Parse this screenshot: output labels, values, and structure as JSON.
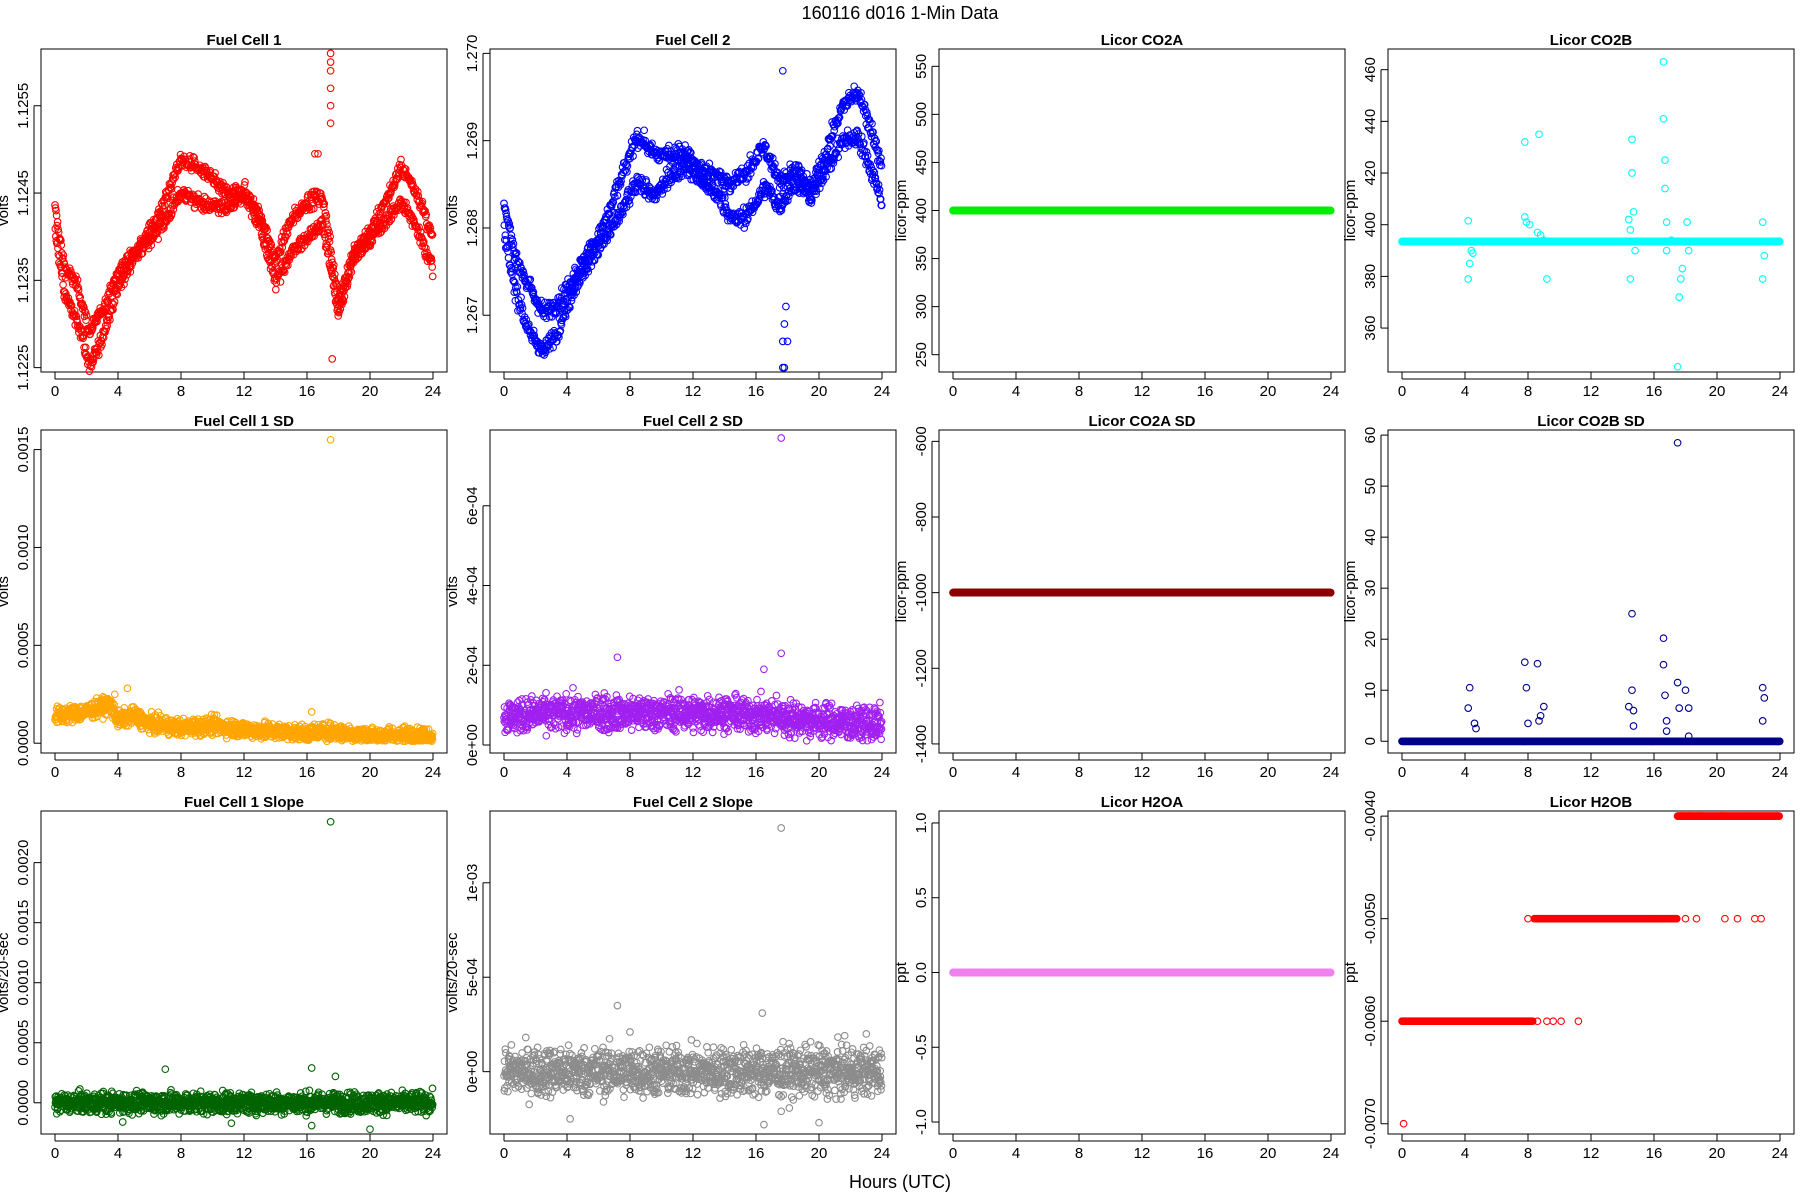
{
  "figure": {
    "title": "160116   d016   1-Min Data",
    "xlabel": "Hours (UTC)"
  },
  "chart_data": [
    {
      "type": "scatter",
      "title": "Fuel Cell 1",
      "ylabel": "volts",
      "color": "#ff0000",
      "xlim": [
        0,
        24
      ],
      "ylim": [
        1.12245,
        1.12615
      ],
      "xticks": [
        0,
        4,
        8,
        12,
        16,
        20,
        24
      ],
      "yticks": [
        1.1225,
        1.1235,
        1.1245,
        1.1255
      ],
      "yticklabels": [
        "1.1225",
        "1.1235",
        "1.1245",
        "1.1255"
      ],
      "knots": [
        [
          0,
          1.1242
        ],
        [
          0.6,
          1.1235
        ],
        [
          1.5,
          1.1232
        ],
        [
          2.2,
          1.1227
        ],
        [
          3,
          1.123
        ],
        [
          4,
          1.1235
        ],
        [
          5,
          1.1238
        ],
        [
          6,
          1.124
        ],
        [
          7,
          1.1243
        ],
        [
          8,
          1.1247
        ],
        [
          9,
          1.1246
        ],
        [
          10,
          1.1245
        ],
        [
          11,
          1.1244
        ],
        [
          12,
          1.1245
        ],
        [
          13,
          1.1242
        ],
        [
          14,
          1.1236
        ],
        [
          15,
          1.124
        ],
        [
          16,
          1.1242
        ],
        [
          17,
          1.1243
        ],
        [
          18,
          1.1232
        ],
        [
          19,
          1.1238
        ],
        [
          20,
          1.124
        ],
        [
          21,
          1.1243
        ],
        [
          22,
          1.1246
        ],
        [
          23,
          1.1243
        ],
        [
          24,
          1.1238
        ]
      ],
      "band": 0.0004,
      "noise": 0.00012,
      "outliers": [
        [
          16.5,
          1.12495
        ],
        [
          16.7,
          1.12495
        ],
        [
          17.5,
          1.1261
        ],
        [
          17.5,
          1.126
        ],
        [
          17.5,
          1.1259
        ],
        [
          17.5,
          1.1257
        ],
        [
          17.5,
          1.1255
        ],
        [
          17.5,
          1.1253
        ],
        [
          17.6,
          1.1226
        ]
      ]
    },
    {
      "type": "scatter",
      "title": "Fuel Cell 2",
      "ylabel": "volts",
      "color": "#0000ff",
      "xlim": [
        0,
        24
      ],
      "ylim": [
        1.26635,
        1.27005
      ],
      "xticks": [
        0,
        4,
        8,
        12,
        16,
        20,
        24
      ],
      "yticks": [
        1.267,
        1.268,
        1.269,
        1.27
      ],
      "yticklabels": [
        "1.267",
        "1.268",
        "1.269",
        "1.270"
      ],
      "knots": [
        [
          0,
          1.2681
        ],
        [
          0.7,
          1.2675
        ],
        [
          1.5,
          1.2671
        ],
        [
          2.5,
          1.2668
        ],
        [
          3.5,
          1.267
        ],
        [
          4.5,
          1.2674
        ],
        [
          5.5,
          1.2677
        ],
        [
          6.5,
          1.268
        ],
        [
          7.5,
          1.2684
        ],
        [
          8.5,
          1.2688
        ],
        [
          9.5,
          1.2686
        ],
        [
          10.5,
          1.2687
        ],
        [
          11.5,
          1.2688
        ],
        [
          12.5,
          1.2686
        ],
        [
          13.5,
          1.2685
        ],
        [
          14.5,
          1.2683
        ],
        [
          15.5,
          1.2684
        ],
        [
          16.5,
          1.2687
        ],
        [
          17.5,
          1.2684
        ],
        [
          18.5,
          1.2686
        ],
        [
          19.5,
          1.2684
        ],
        [
          20.5,
          1.2688
        ],
        [
          21.5,
          1.2692
        ],
        [
          22.5,
          1.2693
        ],
        [
          23.5,
          1.2688
        ],
        [
          24,
          1.2685
        ]
      ],
      "band": 0.0005,
      "noise": 0.00015,
      "outliers": [
        [
          17.7,
          1.2698
        ],
        [
          17.7,
          1.2667
        ],
        [
          17.8,
          1.2669
        ],
        [
          17.9,
          1.2671
        ],
        [
          17.7,
          1.2664
        ],
        [
          17.8,
          1.2664
        ],
        [
          18.0,
          1.2667
        ]
      ]
    },
    {
      "type": "scatter",
      "title": "Licor CO2A",
      "ylabel": "licor-ppm",
      "color": "#00ee00",
      "xlim": [
        0,
        24
      ],
      "ylim": [
        232,
        568
      ],
      "xticks": [
        0,
        4,
        8,
        12,
        16,
        20,
        24
      ],
      "yticks": [
        250,
        300,
        350,
        400,
        450,
        500,
        550
      ],
      "yticklabels": [
        "250",
        "300",
        "350",
        "400",
        "450",
        "500",
        "550"
      ],
      "constant": 400
    },
    {
      "type": "scatter",
      "title": "Licor CO2B",
      "ylabel": "licor-ppm",
      "color": "#00ffff",
      "xlim": [
        0,
        24
      ],
      "ylim": [
        343,
        468
      ],
      "xticks": [
        0,
        4,
        8,
        12,
        16,
        20,
        24
      ],
      "yticks": [
        360,
        380,
        400,
        420,
        440,
        460
      ],
      "yticklabels": [
        "360",
        "380",
        "400",
        "420",
        "440",
        "460"
      ],
      "constant": 393.5,
      "outliers": [
        [
          4.2,
          401.5
        ],
        [
          4.2,
          379
        ],
        [
          4.3,
          385
        ],
        [
          4.4,
          390
        ],
        [
          4.5,
          389
        ],
        [
          7.8,
          432
        ],
        [
          7.8,
          403
        ],
        [
          7.9,
          401
        ],
        [
          8.1,
          400
        ],
        [
          8.6,
          397
        ],
        [
          8.7,
          435
        ],
        [
          8.8,
          396
        ],
        [
          9.0,
          394
        ],
        [
          9.2,
          379
        ],
        [
          14.4,
          402
        ],
        [
          14.5,
          379
        ],
        [
          14.5,
          398
        ],
        [
          14.6,
          420
        ],
        [
          14.6,
          433
        ],
        [
          14.7,
          405
        ],
        [
          14.8,
          390
        ],
        [
          16.6,
          463
        ],
        [
          16.6,
          441
        ],
        [
          16.7,
          425
        ],
        [
          16.7,
          414
        ],
        [
          16.8,
          401
        ],
        [
          16.8,
          390
        ],
        [
          17.1,
          394
        ],
        [
          17.5,
          345
        ],
        [
          17.6,
          372
        ],
        [
          17.7,
          379
        ],
        [
          17.8,
          383
        ],
        [
          18.1,
          401
        ],
        [
          18.2,
          390
        ],
        [
          22.9,
          401
        ],
        [
          22.9,
          379
        ],
        [
          23.0,
          388
        ]
      ]
    },
    {
      "type": "scatter",
      "title": "Fuel Cell 1 SD",
      "ylabel": "volts",
      "color": "#ffa500",
      "xlim": [
        0,
        24
      ],
      "ylim": [
        -5e-05,
        0.0016
      ],
      "xticks": [
        0,
        4,
        8,
        12,
        16,
        20,
        24
      ],
      "yticks": [
        0,
        0.0005,
        0.001,
        0.0015
      ],
      "yticklabels": [
        "0.0000",
        "0.0005",
        "0.0010",
        "0.0015"
      ],
      "knots": [
        [
          0,
          0.00014
        ],
        [
          2,
          0.00016
        ],
        [
          3.5,
          0.0002
        ],
        [
          4,
          0.00012
        ],
        [
          5,
          0.00014
        ],
        [
          6,
          0.0001
        ],
        [
          8,
          8e-05
        ],
        [
          10,
          9e-05
        ],
        [
          12,
          7e-05
        ],
        [
          14,
          6e-05
        ],
        [
          16,
          5e-05
        ],
        [
          17.5,
          6e-05
        ],
        [
          20,
          4e-05
        ],
        [
          24,
          4e-05
        ]
      ],
      "noise": 3e-05,
      "floor": 1e-05,
      "outliers": [
        [
          17.5,
          0.00155
        ],
        [
          16.3,
          0.00016
        ],
        [
          4.6,
          0.00028
        ],
        [
          3.8,
          0.00025
        ]
      ]
    },
    {
      "type": "scatter",
      "title": "Fuel Cell 2 SD",
      "ylabel": "volts",
      "color": "#a020f0",
      "xlim": [
        0,
        24
      ],
      "ylim": [
        -2e-05,
        0.00079
      ],
      "xticks": [
        0,
        4,
        8,
        12,
        16,
        20,
        24
      ],
      "yticks": [
        0,
        0.0002,
        0.0004,
        0.0006
      ],
      "yticklabels": [
        "0e+00",
        "2e-04",
        "4e-04",
        "6e-04"
      ],
      "knots": [
        [
          0,
          7e-05
        ],
        [
          3,
          8e-05
        ],
        [
          6,
          8e-05
        ],
        [
          10,
          8e-05
        ],
        [
          14,
          8e-05
        ],
        [
          17.5,
          7e-05
        ],
        [
          20,
          6e-05
        ],
        [
          24,
          5e-05
        ]
      ],
      "noise": 3e-05,
      "floor": 1e-05,
      "outliers": [
        [
          17.6,
          0.00077
        ],
        [
          17.6,
          0.00023
        ],
        [
          16.5,
          0.00019
        ],
        [
          7.2,
          0.00022
        ]
      ]
    },
    {
      "type": "scatter",
      "title": "Licor CO2A SD",
      "ylabel": "licor-ppm",
      "color": "#8b0000",
      "xlim": [
        0,
        24
      ],
      "ylim": [
        -1424,
        -570
      ],
      "xticks": [
        0,
        4,
        8,
        12,
        16,
        20,
        24
      ],
      "yticks": [
        -1400,
        -1200,
        -1000,
        -800,
        -600
      ],
      "yticklabels": [
        "-1400",
        "-1200",
        "-1000",
        "-800",
        "-600"
      ],
      "constant": -1000
    },
    {
      "type": "scatter",
      "title": "Licor CO2B SD",
      "ylabel": "licor-ppm",
      "color": "#00008b",
      "xlim": [
        0,
        24
      ],
      "ylim": [
        -2.3,
        61
      ],
      "xticks": [
        0,
        4,
        8,
        12,
        16,
        20,
        24
      ],
      "yticks": [
        0,
        10,
        20,
        30,
        40,
        50,
        60
      ],
      "yticklabels": [
        "0",
        "10",
        "20",
        "30",
        "40",
        "50",
        "60"
      ],
      "constant": 0,
      "outliers": [
        [
          4.2,
          6.5
        ],
        [
          4.3,
          10.5
        ],
        [
          4.6,
          3.5
        ],
        [
          4.7,
          2.5
        ],
        [
          7.8,
          15.5
        ],
        [
          7.9,
          10.5
        ],
        [
          8.0,
          3.5
        ],
        [
          8.6,
          15.2
        ],
        [
          8.7,
          4
        ],
        [
          8.8,
          5
        ],
        [
          9.0,
          6.8
        ],
        [
          14.4,
          6.8
        ],
        [
          14.6,
          25
        ],
        [
          14.6,
          10
        ],
        [
          14.7,
          6
        ],
        [
          14.7,
          3
        ],
        [
          16.6,
          20.2
        ],
        [
          16.6,
          15
        ],
        [
          16.7,
          9
        ],
        [
          16.8,
          4
        ],
        [
          16.8,
          2
        ],
        [
          17.5,
          58.5
        ],
        [
          17.5,
          11.5
        ],
        [
          17.6,
          6.5
        ],
        [
          18.0,
          10
        ],
        [
          18.2,
          6.5
        ],
        [
          18.2,
          1
        ],
        [
          22.9,
          10.5
        ],
        [
          23.0,
          8.5
        ],
        [
          22.9,
          4
        ]
      ]
    },
    {
      "type": "scatter",
      "title": "Fuel Cell 1 Slope",
      "ylabel": "volts/20-sec",
      "color": "#006400",
      "xlim": [
        0,
        24
      ],
      "ylim": [
        -0.00026,
        0.00243
      ],
      "xticks": [
        0,
        4,
        8,
        12,
        16,
        20,
        24
      ],
      "yticks": [
        0,
        0.0005,
        0.001,
        0.0015,
        0.002
      ],
      "yticklabels": [
        "0.0000",
        "0.0005",
        "0.0010",
        "0.0015",
        "0.0020"
      ],
      "constant": 0,
      "noise": 6e-05,
      "outliers": [
        [
          17.5,
          0.00234
        ],
        [
          7.0,
          0.00028
        ],
        [
          16.3,
          0.00029
        ],
        [
          17.8,
          0.00022
        ],
        [
          4.3,
          -0.00016
        ],
        [
          11.2,
          -0.00017
        ],
        [
          16.3,
          -0.00019
        ],
        [
          20,
          -0.00022
        ]
      ]
    },
    {
      "type": "scatter",
      "title": "Fuel Cell 2 Slope",
      "ylabel": "volts/20-sec",
      "color": "#8c8c8c",
      "xlim": [
        0,
        24
      ],
      "ylim": [
        -0.00033,
        0.00138
      ],
      "xticks": [
        0,
        4,
        8,
        12,
        16,
        20,
        24
      ],
      "yticks": [
        0,
        0.0005,
        0.001
      ],
      "yticklabels": [
        "0e+00",
        "5e-04",
        "1e-03"
      ],
      "constant": 0,
      "noise": 9e-05,
      "outliers": [
        [
          17.6,
          0.00129
        ],
        [
          7.2,
          0.00035
        ],
        [
          16.4,
          0.00031
        ],
        [
          8,
          0.00021
        ],
        [
          23,
          0.0002
        ],
        [
          4.2,
          -0.00025
        ],
        [
          16.5,
          -0.00028
        ],
        [
          20,
          -0.00027
        ],
        [
          17.6,
          -0.00021
        ]
      ]
    },
    {
      "type": "scatter",
      "title": "Licor H2OA",
      "ylabel": "ppt",
      "color": "#ee82ee",
      "xlim": [
        0,
        24
      ],
      "ylim": [
        -1.08,
        1.08
      ],
      "xticks": [
        0,
        4,
        8,
        12,
        16,
        20,
        24
      ],
      "yticks": [
        -1,
        -0.5,
        0,
        0.5,
        1
      ],
      "yticklabels": [
        "-1.0",
        "-0.5",
        "0.0",
        "0.5",
        "1.0"
      ],
      "constant": 0
    },
    {
      "type": "scatter",
      "title": "Licor H2OB",
      "ylabel": "ppt",
      "color": "#ff0000",
      "xlim": [
        0,
        24
      ],
      "ylim": [
        -0.0071,
        -0.00395
      ],
      "xticks": [
        0,
        4,
        8,
        12,
        16,
        20,
        24
      ],
      "yticks": [
        -0.007,
        -0.006,
        -0.005,
        -0.004
      ],
      "yticklabels": [
        "-0.0070",
        "-0.0060",
        "-0.0050",
        "-0.0040"
      ],
      "segments": [
        [
          0,
          8.3,
          -0.006
        ],
        [
          8.4,
          17.5,
          -0.005
        ],
        [
          17.5,
          24,
          -0.004
        ]
      ],
      "outliers": [
        [
          0.1,
          -0.007
        ],
        [
          8.6,
          -0.006
        ],
        [
          9.2,
          -0.006
        ],
        [
          9.6,
          -0.006
        ],
        [
          10.1,
          -0.006
        ],
        [
          11.2,
          -0.006
        ],
        [
          8.0,
          -0.005
        ],
        [
          18.0,
          -0.005
        ],
        [
          18.7,
          -0.005
        ],
        [
          20.5,
          -0.005
        ],
        [
          21.3,
          -0.005
        ],
        [
          22.4,
          -0.005
        ],
        [
          22.8,
          -0.005
        ],
        [
          17.8,
          -0.004
        ],
        [
          18.3,
          -0.004
        ],
        [
          19.0,
          -0.004
        ],
        [
          20.3,
          -0.004
        ]
      ]
    }
  ]
}
